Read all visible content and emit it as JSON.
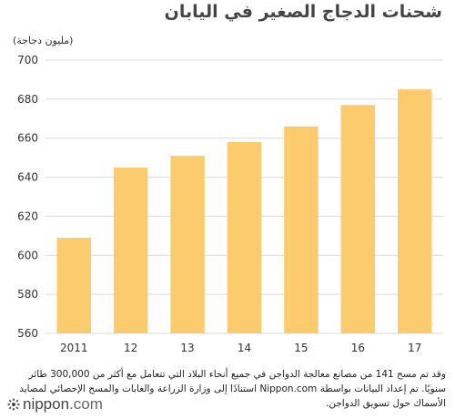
{
  "title": "شحنات الدجاج الصغير في اليابان",
  "unit_label": "(مليون دجاجة)",
  "note": "وقد تم مسح 141 من مصانع معالجة الدواجن في جميع أنحاء البلاد التي تتعامل مع أكثر من 300,000 طائر سنويًا. تم إعداد البيانات بواسطة Nippon.com استنادًا إلى وزارة الزراعة والغابات والمسح الإحصائي لمصايد الأسماك حول تسويق الدواجن.",
  "logo": {
    "brand": "nippon",
    "suffix": ".com"
  },
  "colors": {
    "bar": "#fccb6d",
    "grid": "#dcdcdc",
    "text": "#333333"
  },
  "chart_data": {
    "type": "bar",
    "categories": [
      "2011",
      "12",
      "13",
      "14",
      "15",
      "16",
      "17"
    ],
    "values": [
      609,
      645,
      651,
      658,
      666,
      677,
      685
    ],
    "ylim": [
      560,
      700
    ],
    "yticks": [
      560,
      580,
      600,
      620,
      640,
      660,
      680,
      700
    ],
    "grid": true,
    "title": "شحنات الدجاج الصغير في اليابان",
    "ylabel": "(مليون دجاجة)",
    "xlabel": ""
  }
}
